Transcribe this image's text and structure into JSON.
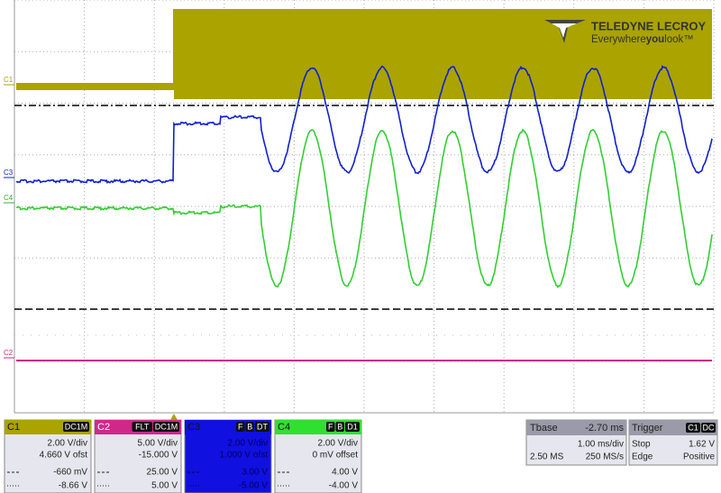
{
  "logo": {
    "brand": "TELEDYNE LECROY",
    "tagline_start": "Everywhere",
    "tagline_bold": "you",
    "tagline_end": "look™"
  },
  "trace_markers": [
    "C1",
    "C3",
    "C4",
    "C2"
  ],
  "channels": [
    {
      "label": "C1",
      "tags": [
        "DC1M"
      ],
      "scale": "2.00 V/div",
      "offset": "4.660 V ofst",
      "upper": "-660 mV",
      "lower": "-8.66 V"
    },
    {
      "label": "C2",
      "tags": [
        "FLT",
        "DC1M"
      ],
      "scale": "5.00 V/div",
      "offset": "-15.000 V",
      "upper": "25.00 V",
      "lower": "5.00 V"
    },
    {
      "label": "C3",
      "tags": [
        "F",
        "B",
        "DT"
      ],
      "scale": "2.00 V/div",
      "offset": "1.000 V ofst",
      "upper": "3.00 V",
      "lower": "-5.00 V"
    },
    {
      "label": "C4",
      "tags": [
        "F",
        "B",
        "D1"
      ],
      "scale": "2.00 V/div",
      "offset": "0 mV offset",
      "upper": "4.00 V",
      "lower": "-4.00 V"
    }
  ],
  "timebase": {
    "label": "Tbase",
    "delay": "-2.70 ms",
    "scale": "1.00 ms/div",
    "samples": "2.50 MS",
    "rate": "250 MS/s"
  },
  "trigger": {
    "label": "Trigger",
    "tags": [
      "C1",
      "DC"
    ],
    "mode": "Stop",
    "level": "1.62 V",
    "kind": "Edge",
    "slope": "Positive"
  }
}
